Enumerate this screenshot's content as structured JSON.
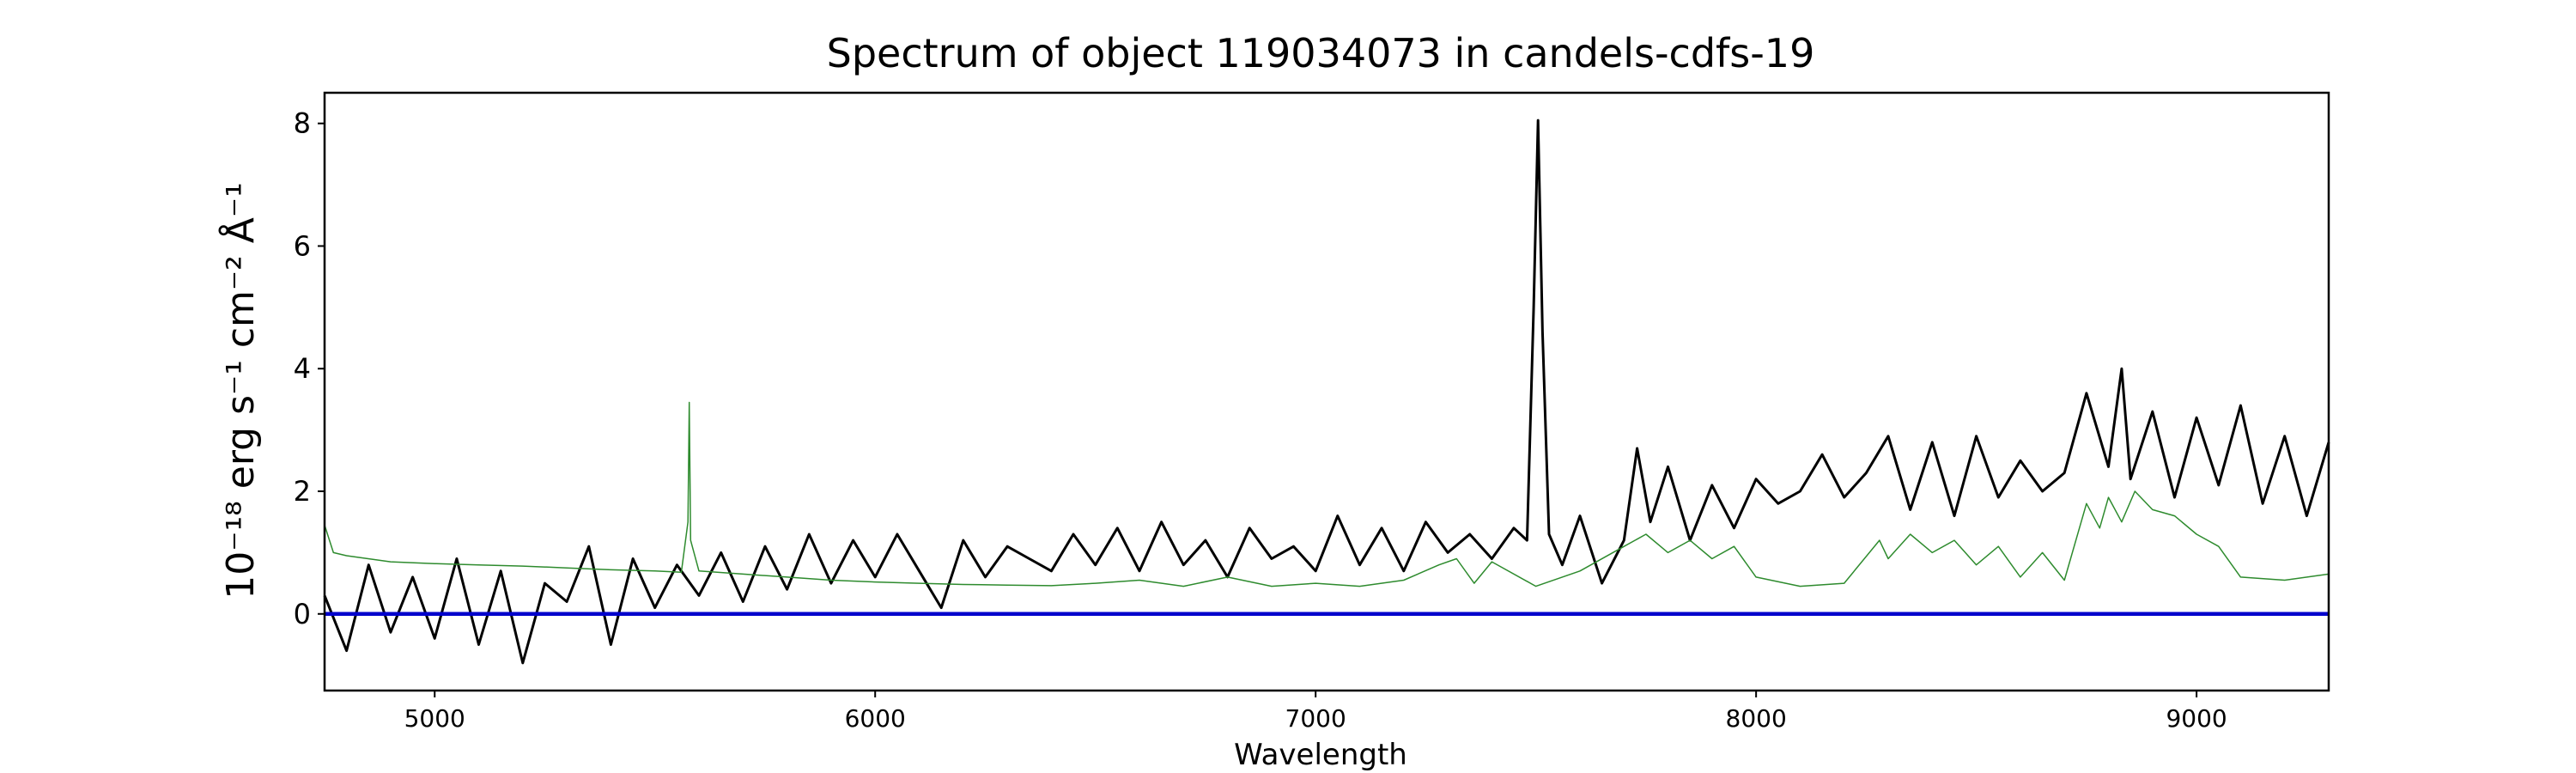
{
  "chart_data": {
    "type": "line",
    "title": "Spectrum of object 119034073 in candels-cdfs-19",
    "xlabel": "Wavelength",
    "ylabel": "10⁻¹⁸ erg s⁻¹ cm⁻² Å⁻¹",
    "xlim": [
      4750,
      9300
    ],
    "ylim": [
      -1.25,
      8.5
    ],
    "xticks": [
      5000,
      6000,
      7000,
      8000,
      9000
    ],
    "yticks": [
      0,
      2,
      4,
      6,
      8
    ],
    "grid": false,
    "colors": {
      "flux": "#000000",
      "sky": "#2e8b2e",
      "zero": "#0000cc"
    },
    "series": [
      {
        "key": "flux",
        "x": [
          4750,
          4800,
          4850,
          4900,
          4950,
          5000,
          5050,
          5100,
          5150,
          5200,
          5250,
          5300,
          5350,
          5400,
          5450,
          5500,
          5550,
          5600,
          5650,
          5700,
          5750,
          5800,
          5850,
          5900,
          5950,
          6000,
          6050,
          6100,
          6150,
          6200,
          6250,
          6300,
          6350,
          6400,
          6450,
          6500,
          6550,
          6600,
          6650,
          6700,
          6750,
          6800,
          6850,
          6900,
          6950,
          7000,
          7050,
          7100,
          7150,
          7200,
          7250,
          7300,
          7350,
          7400,
          7450,
          7480,
          7495,
          7505,
          7515,
          7530,
          7560,
          7600,
          7650,
          7700,
          7730,
          7760,
          7800,
          7850,
          7900,
          7950,
          8000,
          8050,
          8100,
          8150,
          8200,
          8250,
          8300,
          8350,
          8400,
          8450,
          8500,
          8550,
          8600,
          8650,
          8700,
          8750,
          8800,
          8830,
          8850,
          8900,
          8950,
          9000,
          9050,
          9100,
          9150,
          9200,
          9250,
          9300
        ],
        "y": [
          0.3,
          -0.6,
          0.8,
          -0.3,
          0.6,
          -0.4,
          0.9,
          -0.5,
          0.7,
          -0.8,
          0.5,
          0.2,
          1.1,
          -0.5,
          0.9,
          0.1,
          0.8,
          0.3,
          1.0,
          0.2,
          1.1,
          0.4,
          1.3,
          0.5,
          1.2,
          0.6,
          1.3,
          0.7,
          0.1,
          1.2,
          0.6,
          1.1,
          0.9,
          0.7,
          1.3,
          0.8,
          1.4,
          0.7,
          1.5,
          0.8,
          1.2,
          0.6,
          1.4,
          0.9,
          1.1,
          0.7,
          1.6,
          0.8,
          1.4,
          0.7,
          1.5,
          1.0,
          1.3,
          0.9,
          1.4,
          1.2,
          5.0,
          8.05,
          4.6,
          1.3,
          0.8,
          1.6,
          0.5,
          1.2,
          2.7,
          1.5,
          2.4,
          1.2,
          2.1,
          1.4,
          2.2,
          1.8,
          2.0,
          2.6,
          1.9,
          2.3,
          2.9,
          1.7,
          2.8,
          1.6,
          2.9,
          1.9,
          2.5,
          2.0,
          2.3,
          3.6,
          2.4,
          4.0,
          2.2,
          3.3,
          1.9,
          3.2,
          2.1,
          3.4,
          1.8,
          2.9,
          1.6,
          2.8
        ]
      },
      {
        "key": "sky",
        "x": [
          4750,
          4770,
          4800,
          4900,
          5000,
          5100,
          5200,
          5300,
          5400,
          5500,
          5560,
          5575,
          5578,
          5581,
          5600,
          5700,
          5800,
          5900,
          6000,
          6100,
          6200,
          6300,
          6400,
          6500,
          6600,
          6700,
          6800,
          6900,
          7000,
          7100,
          7200,
          7280,
          7320,
          7360,
          7400,
          7500,
          7600,
          7700,
          7750,
          7800,
          7850,
          7900,
          7950,
          8000,
          8100,
          8200,
          8280,
          8300,
          8350,
          8400,
          8450,
          8500,
          8550,
          8600,
          8650,
          8700,
          8750,
          8780,
          8800,
          8830,
          8860,
          8900,
          8950,
          9000,
          9050,
          9100,
          9200,
          9300
        ],
        "y": [
          1.45,
          1.0,
          0.95,
          0.85,
          0.82,
          0.8,
          0.78,
          0.75,
          0.72,
          0.7,
          0.68,
          1.5,
          3.45,
          1.2,
          0.7,
          0.65,
          0.6,
          0.55,
          0.52,
          0.5,
          0.48,
          0.47,
          0.46,
          0.5,
          0.55,
          0.45,
          0.6,
          0.45,
          0.5,
          0.45,
          0.55,
          0.8,
          0.9,
          0.5,
          0.85,
          0.45,
          0.7,
          1.1,
          1.3,
          1.0,
          1.2,
          0.9,
          1.1,
          0.6,
          0.45,
          0.5,
          1.2,
          0.9,
          1.3,
          1.0,
          1.2,
          0.8,
          1.1,
          0.6,
          1.0,
          0.55,
          1.8,
          1.4,
          1.9,
          1.5,
          2.0,
          1.7,
          1.6,
          1.3,
          1.1,
          0.6,
          0.55,
          0.65
        ]
      },
      {
        "key": "zero",
        "x": [
          4750,
          9300
        ],
        "y": [
          0,
          0
        ]
      }
    ]
  }
}
